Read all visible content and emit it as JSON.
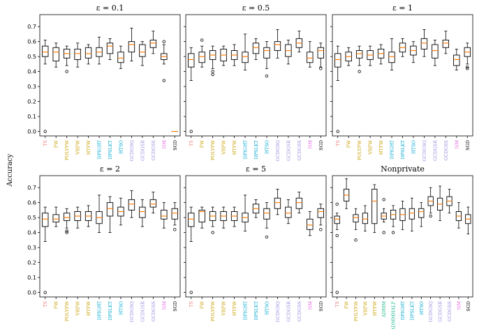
{
  "colors": {
    "ts": "#f08080",
    "fw": "#c8a000",
    "dp": "#00a8d0",
    "gcd": "#9a8ee0",
    "nm": "#e064e0",
    "sgd": "#000000",
    "admm": "#20b890",
    "median": "#ff7f0e"
  },
  "chart_data": [
    {
      "type": "box",
      "title": "ε = 0.1",
      "ylabel": "Accuracy",
      "ylim": [
        -0.03,
        0.78
      ],
      "yticks": [
        0.0,
        0.1,
        0.2,
        0.3,
        0.4,
        0.5,
        0.6,
        0.7
      ],
      "boxes": [
        {
          "label": "TS",
          "group": "ts",
          "q1": 0.5,
          "med": 0.53,
          "q3": 0.57,
          "wlo": 0.45,
          "whi": 0.61,
          "outliers": [
            0.0
          ]
        },
        {
          "label": "FW",
          "group": "fw",
          "q1": 0.47,
          "med": 0.53,
          "q3": 0.56,
          "wlo": 0.43,
          "whi": 0.59,
          "outliers": []
        },
        {
          "label": "POLYFW",
          "group": "fw",
          "q1": 0.49,
          "med": 0.52,
          "q3": 0.55,
          "wlo": 0.44,
          "whi": 0.57,
          "outliers": [
            0.4
          ]
        },
        {
          "label": "VRFW",
          "group": "fw",
          "q1": 0.48,
          "med": 0.52,
          "q3": 0.55,
          "wlo": 0.43,
          "whi": 0.59,
          "outliers": []
        },
        {
          "label": "HTFW",
          "group": "fw",
          "q1": 0.49,
          "med": 0.52,
          "q3": 0.56,
          "wlo": 0.45,
          "whi": 0.58,
          "outliers": []
        },
        {
          "label": "DPIGHT",
          "group": "dp",
          "q1": 0.5,
          "med": 0.53,
          "q3": 0.56,
          "wlo": 0.45,
          "whi": 0.63,
          "outliers": []
        },
        {
          "label": "DPSLKT",
          "group": "dp",
          "q1": 0.52,
          "med": 0.57,
          "q3": 0.59,
          "wlo": 0.48,
          "whi": 0.62,
          "outliers": []
        },
        {
          "label": "HTSO",
          "group": "dp",
          "q1": 0.46,
          "med": 0.49,
          "q3": 0.53,
          "wlo": 0.42,
          "whi": 0.57,
          "outliers": []
        },
        {
          "label": "GCDGSQ",
          "group": "gcd",
          "q1": 0.53,
          "med": 0.58,
          "q3": 0.6,
          "wlo": 0.47,
          "whi": 0.69,
          "outliers": []
        },
        {
          "label": "GCDGSR",
          "group": "gcd",
          "q1": 0.5,
          "med": 0.53,
          "q3": 0.58,
          "wlo": 0.44,
          "whi": 0.6,
          "outliers": []
        },
        {
          "label": "GCDGSS",
          "group": "gcd",
          "q1": 0.56,
          "med": 0.59,
          "q3": 0.61,
          "wlo": 0.52,
          "whi": 0.67,
          "outliers": []
        },
        {
          "label": "NM",
          "group": "nm",
          "q1": 0.48,
          "med": 0.5,
          "q3": 0.52,
          "wlo": 0.45,
          "whi": 0.58,
          "outliers": [
            0.6,
            0.34
          ]
        },
        {
          "label": "SGD",
          "group": "sgd",
          "q1": 0.0,
          "med": 0.0,
          "q3": 0.0,
          "wlo": 0.0,
          "whi": 0.0,
          "outliers": []
        }
      ]
    },
    {
      "type": "box",
      "title": "ε = 0.5",
      "ylim": [
        -0.03,
        0.78
      ],
      "boxes": [
        {
          "label": "TS",
          "group": "ts",
          "q1": 0.43,
          "med": 0.48,
          "q3": 0.52,
          "wlo": 0.34,
          "whi": 0.56,
          "outliers": [
            0.0
          ]
        },
        {
          "label": "FW",
          "group": "fw",
          "q1": 0.46,
          "med": 0.5,
          "q3": 0.53,
          "wlo": 0.43,
          "whi": 0.57,
          "outliers": [
            0.61
          ]
        },
        {
          "label": "POLYFW",
          "group": "fw",
          "q1": 0.48,
          "med": 0.51,
          "q3": 0.54,
          "wlo": 0.42,
          "whi": 0.57,
          "outliers": [
            0.4,
            0.38
          ]
        },
        {
          "label": "VRFW",
          "group": "fw",
          "q1": 0.47,
          "med": 0.51,
          "q3": 0.55,
          "wlo": 0.44,
          "whi": 0.57,
          "outliers": []
        },
        {
          "label": "HTFW",
          "group": "fw",
          "q1": 0.48,
          "med": 0.51,
          "q3": 0.54,
          "wlo": 0.44,
          "whi": 0.58,
          "outliers": []
        },
        {
          "label": "DPIGHT",
          "group": "dp",
          "q1": 0.46,
          "med": 0.5,
          "q3": 0.53,
          "wlo": 0.41,
          "whi": 0.65,
          "outliers": []
        },
        {
          "label": "DPSLKT",
          "group": "dp",
          "q1": 0.52,
          "med": 0.56,
          "q3": 0.59,
          "wlo": 0.48,
          "whi": 0.62,
          "outliers": []
        },
        {
          "label": "HTSO",
          "group": "dp",
          "q1": 0.49,
          "med": 0.54,
          "q3": 0.56,
          "wlo": 0.42,
          "whi": 0.6,
          "outliers": [
            0.37
          ]
        },
        {
          "label": "GCDGSQ",
          "group": "gcd",
          "q1": 0.54,
          "med": 0.58,
          "q3": 0.6,
          "wlo": 0.49,
          "whi": 0.68,
          "outliers": []
        },
        {
          "label": "GCDGSR",
          "group": "gcd",
          "q1": 0.5,
          "med": 0.54,
          "q3": 0.58,
          "wlo": 0.45,
          "whi": 0.61,
          "outliers": []
        },
        {
          "label": "GCDGSS",
          "group": "gcd",
          "q1": 0.56,
          "med": 0.59,
          "q3": 0.62,
          "wlo": 0.53,
          "whi": 0.67,
          "outliers": []
        },
        {
          "label": "NM",
          "group": "nm",
          "q1": 0.46,
          "med": 0.49,
          "q3": 0.53,
          "wlo": 0.43,
          "whi": 0.6,
          "outliers": []
        },
        {
          "label": "SGD",
          "group": "sgd",
          "q1": 0.49,
          "med": 0.54,
          "q3": 0.56,
          "wlo": 0.43,
          "whi": 0.59,
          "outliers": [
            0.42
          ]
        }
      ]
    },
    {
      "type": "box",
      "title": "ε = 1",
      "ylim": [
        -0.03,
        0.78
      ],
      "boxes": [
        {
          "label": "TS",
          "group": "ts",
          "q1": 0.43,
          "med": 0.48,
          "q3": 0.52,
          "wlo": 0.34,
          "whi": 0.57,
          "outliers": [
            0.0
          ]
        },
        {
          "label": "FW",
          "group": "fw",
          "q1": 0.47,
          "med": 0.5,
          "q3": 0.53,
          "wlo": 0.44,
          "whi": 0.56,
          "outliers": []
        },
        {
          "label": "POLYFW",
          "group": "fw",
          "q1": 0.49,
          "med": 0.52,
          "q3": 0.54,
          "wlo": 0.44,
          "whi": 0.57,
          "outliers": [
            0.4
          ]
        },
        {
          "label": "VRFW",
          "group": "fw",
          "q1": 0.48,
          "med": 0.51,
          "q3": 0.54,
          "wlo": 0.44,
          "whi": 0.57,
          "outliers": []
        },
        {
          "label": "HTFW",
          "group": "fw",
          "q1": 0.49,
          "med": 0.52,
          "q3": 0.55,
          "wlo": 0.45,
          "whi": 0.58,
          "outliers": []
        },
        {
          "label": "DPIGHT",
          "group": "dp",
          "q1": 0.46,
          "med": 0.5,
          "q3": 0.53,
          "wlo": 0.41,
          "whi": 0.62,
          "outliers": []
        },
        {
          "label": "DPSLKT",
          "group": "dp",
          "q1": 0.53,
          "med": 0.56,
          "q3": 0.59,
          "wlo": 0.5,
          "whi": 0.62,
          "outliers": []
        },
        {
          "label": "HTSO",
          "group": "dp",
          "q1": 0.51,
          "med": 0.54,
          "q3": 0.57,
          "wlo": 0.46,
          "whi": 0.6,
          "outliers": []
        },
        {
          "label": "GCDGSQ",
          "group": "gcd",
          "q1": 0.55,
          "med": 0.59,
          "q3": 0.62,
          "wlo": 0.5,
          "whi": 0.68,
          "outliers": []
        },
        {
          "label": "GCDGSR",
          "group": "gcd",
          "q1": 0.49,
          "med": 0.54,
          "q3": 0.58,
          "wlo": 0.44,
          "whi": 0.61,
          "outliers": []
        },
        {
          "label": "GCDGSS",
          "group": "gcd",
          "q1": 0.56,
          "med": 0.59,
          "q3": 0.61,
          "wlo": 0.52,
          "whi": 0.67,
          "outliers": []
        },
        {
          "label": "NM",
          "group": "nm",
          "q1": 0.44,
          "med": 0.48,
          "q3": 0.51,
          "wlo": 0.41,
          "whi": 0.55,
          "outliers": []
        },
        {
          "label": "SGD",
          "group": "sgd",
          "q1": 0.5,
          "med": 0.53,
          "q3": 0.56,
          "wlo": 0.45,
          "whi": 0.59,
          "outliers": [
            0.43,
            0.42
          ]
        }
      ]
    },
    {
      "type": "box",
      "title": "ε = 2",
      "ylabel": "Accuracy",
      "ylim": [
        -0.03,
        0.78
      ],
      "yticks": [
        0.0,
        0.1,
        0.2,
        0.3,
        0.4,
        0.5,
        0.6,
        0.7
      ],
      "boxes": [
        {
          "label": "TS",
          "group": "ts",
          "q1": 0.44,
          "med": 0.49,
          "q3": 0.53,
          "wlo": 0.34,
          "whi": 0.57,
          "outliers": [
            0.0
          ]
        },
        {
          "label": "FW",
          "group": "fw",
          "q1": 0.47,
          "med": 0.49,
          "q3": 0.52,
          "wlo": 0.44,
          "whi": 0.57,
          "outliers": []
        },
        {
          "label": "POLYFW",
          "group": "fw",
          "q1": 0.48,
          "med": 0.5,
          "q3": 0.53,
          "wlo": 0.43,
          "whi": 0.56,
          "outliers": [
            0.41,
            0.4
          ]
        },
        {
          "label": "VRFW",
          "group": "fw",
          "q1": 0.48,
          "med": 0.51,
          "q3": 0.54,
          "wlo": 0.43,
          "whi": 0.57,
          "outliers": []
        },
        {
          "label": "HTFW",
          "group": "fw",
          "q1": 0.48,
          "med": 0.51,
          "q3": 0.54,
          "wlo": 0.44,
          "whi": 0.58,
          "outliers": []
        },
        {
          "label": "DPIGHT",
          "group": "dp",
          "q1": 0.46,
          "med": 0.5,
          "q3": 0.54,
          "wlo": 0.4,
          "whi": 0.65,
          "outliers": []
        },
        {
          "label": "DPSLKT",
          "group": "dp",
          "q1": 0.51,
          "med": 0.56,
          "q3": 0.6,
          "wlo": 0.4,
          "whi": 0.64,
          "outliers": []
        },
        {
          "label": "HTSO",
          "group": "dp",
          "q1": 0.51,
          "med": 0.54,
          "q3": 0.57,
          "wlo": 0.45,
          "whi": 0.63,
          "outliers": []
        },
        {
          "label": "GCDGSQ",
          "group": "gcd",
          "q1": 0.55,
          "med": 0.59,
          "q3": 0.62,
          "wlo": 0.5,
          "whi": 0.68,
          "outliers": []
        },
        {
          "label": "GCDGSR",
          "group": "gcd",
          "q1": 0.5,
          "med": 0.54,
          "q3": 0.57,
          "wlo": 0.44,
          "whi": 0.62,
          "outliers": []
        },
        {
          "label": "GCDGSS",
          "group": "gcd",
          "q1": 0.57,
          "med": 0.59,
          "q3": 0.62,
          "wlo": 0.53,
          "whi": 0.67,
          "outliers": []
        },
        {
          "label": "NM",
          "group": "nm",
          "q1": 0.49,
          "med": 0.51,
          "q3": 0.55,
          "wlo": 0.43,
          "whi": 0.6,
          "outliers": []
        },
        {
          "label": "SGD",
          "group": "sgd",
          "q1": 0.49,
          "med": 0.53,
          "q3": 0.56,
          "wlo": 0.45,
          "whi": 0.6,
          "outliers": [
            0.42
          ]
        }
      ]
    },
    {
      "type": "box",
      "title": "ε = 5",
      "ylim": [
        -0.03,
        0.78
      ],
      "boxes": [
        {
          "label": "TS",
          "group": "ts",
          "q1": 0.44,
          "med": 0.49,
          "q3": 0.53,
          "wlo": 0.34,
          "whi": 0.57,
          "outliers": [
            0.0
          ]
        },
        {
          "label": "FW",
          "group": "fw",
          "q1": 0.47,
          "med": 0.54,
          "q3": 0.55,
          "wlo": 0.43,
          "whi": 0.57,
          "outliers": []
        },
        {
          "label": "POLYFW",
          "group": "fw",
          "q1": 0.48,
          "med": 0.51,
          "q3": 0.54,
          "wlo": 0.44,
          "whi": 0.57,
          "outliers": [
            0.4
          ]
        },
        {
          "label": "VRFW",
          "group": "fw",
          "q1": 0.48,
          "med": 0.51,
          "q3": 0.54,
          "wlo": 0.43,
          "whi": 0.57,
          "outliers": []
        },
        {
          "label": "HTFW",
          "group": "fw",
          "q1": 0.48,
          "med": 0.51,
          "q3": 0.54,
          "wlo": 0.44,
          "whi": 0.57,
          "outliers": []
        },
        {
          "label": "DPIGHT",
          "group": "dp",
          "q1": 0.47,
          "med": 0.5,
          "q3": 0.53,
          "wlo": 0.41,
          "whi": 0.65,
          "outliers": []
        },
        {
          "label": "DPSLKT",
          "group": "dp",
          "q1": 0.53,
          "med": 0.56,
          "q3": 0.59,
          "wlo": 0.5,
          "whi": 0.62,
          "outliers": []
        },
        {
          "label": "HTSO",
          "group": "dp",
          "q1": 0.49,
          "med": 0.53,
          "q3": 0.56,
          "wlo": 0.43,
          "whi": 0.6,
          "outliers": [
            0.37
          ]
        },
        {
          "label": "GCDGSQ",
          "group": "gcd",
          "q1": 0.56,
          "med": 0.6,
          "q3": 0.63,
          "wlo": 0.52,
          "whi": 0.69,
          "outliers": []
        },
        {
          "label": "GCDGSR",
          "group": "gcd",
          "q1": 0.5,
          "med": 0.53,
          "q3": 0.57,
          "wlo": 0.46,
          "whi": 0.62,
          "outliers": []
        },
        {
          "label": "GCDGSS",
          "group": "gcd",
          "q1": 0.56,
          "med": 0.6,
          "q3": 0.63,
          "wlo": 0.53,
          "whi": 0.67,
          "outliers": []
        },
        {
          "label": "NM",
          "group": "nm",
          "q1": 0.42,
          "med": 0.45,
          "q3": 0.49,
          "wlo": 0.38,
          "whi": 0.54,
          "outliers": []
        },
        {
          "label": "SGD",
          "group": "sgd",
          "q1": 0.5,
          "med": 0.54,
          "q3": 0.56,
          "wlo": 0.45,
          "whi": 0.59,
          "outliers": [
            0.42
          ]
        }
      ]
    },
    {
      "type": "box",
      "title": "Nonprivate",
      "ylim": [
        -0.03,
        0.78
      ],
      "boxes": [
        {
          "label": "TS",
          "group": "ts",
          "q1": 0.46,
          "med": 0.49,
          "q3": 0.51,
          "wlo": 0.42,
          "whi": 0.53,
          "outliers": [
            0.59,
            0.38,
            0.0
          ]
        },
        {
          "label": "FW",
          "group": "fw",
          "q1": 0.61,
          "med": 0.65,
          "q3": 0.69,
          "wlo": 0.56,
          "whi": 0.76,
          "outliers": []
        },
        {
          "label": "POLYFW",
          "group": "fw",
          "q1": 0.47,
          "med": 0.5,
          "q3": 0.52,
          "wlo": 0.42,
          "whi": 0.56,
          "outliers": [
            0.35
          ]
        },
        {
          "label": "VRFW",
          "group": "fw",
          "q1": 0.46,
          "med": 0.49,
          "q3": 0.53,
          "wlo": 0.41,
          "whi": 0.58,
          "outliers": []
        },
        {
          "label": "HTFW",
          "group": "fw",
          "q1": 0.46,
          "med": 0.61,
          "q3": 0.69,
          "wlo": 0.4,
          "whi": 0.72,
          "outliers": []
        },
        {
          "label": "ADMM",
          "group": "admm",
          "q1": 0.49,
          "med": 0.51,
          "q3": 0.53,
          "wlo": 0.47,
          "whi": 0.56,
          "outliers": [
            0.62,
            0.4
          ]
        },
        {
          "label": "ADMMHALF",
          "group": "admm",
          "q1": 0.49,
          "med": 0.52,
          "q3": 0.55,
          "wlo": 0.44,
          "whi": 0.58,
          "outliers": [
            0.4
          ]
        },
        {
          "label": "DPIGHT",
          "group": "dp",
          "q1": 0.48,
          "med": 0.52,
          "q3": 0.56,
          "wlo": 0.42,
          "whi": 0.61,
          "outliers": []
        },
        {
          "label": "DPSLKT",
          "group": "dp",
          "q1": 0.49,
          "med": 0.53,
          "q3": 0.56,
          "wlo": 0.41,
          "whi": 0.63,
          "outliers": []
        },
        {
          "label": "HTSO",
          "group": "dp",
          "q1": 0.5,
          "med": 0.54,
          "q3": 0.56,
          "wlo": 0.44,
          "whi": 0.6,
          "outliers": []
        },
        {
          "label": "GCDGSQ",
          "group": "gcd",
          "q1": 0.58,
          "med": 0.61,
          "q3": 0.64,
          "wlo": 0.53,
          "whi": 0.7,
          "outliers": [
            0.51
          ]
        },
        {
          "label": "GCDGSR",
          "group": "gcd",
          "q1": 0.55,
          "med": 0.59,
          "q3": 0.63,
          "wlo": 0.48,
          "whi": 0.71,
          "outliers": []
        },
        {
          "label": "GCDGSS",
          "group": "gcd",
          "q1": 0.58,
          "med": 0.61,
          "q3": 0.64,
          "wlo": 0.53,
          "whi": 0.69,
          "outliers": []
        },
        {
          "label": "NM",
          "group": "nm",
          "q1": 0.48,
          "med": 0.51,
          "q3": 0.54,
          "wlo": 0.43,
          "whi": 0.6,
          "outliers": []
        },
        {
          "label": "SGD",
          "group": "sgd",
          "q1": 0.46,
          "med": 0.49,
          "q3": 0.52,
          "wlo": 0.39,
          "whi": 0.57,
          "outliers": []
        }
      ]
    }
  ]
}
